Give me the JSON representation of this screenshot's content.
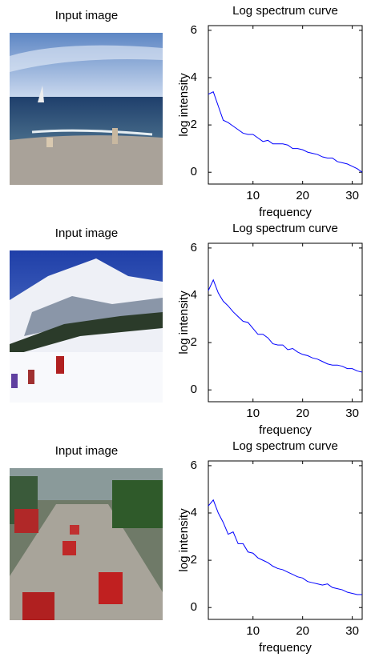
{
  "input_images": [
    {
      "title": "Input image"
    },
    {
      "title": "Input image"
    },
    {
      "title": "Input image"
    }
  ],
  "chart_data": [
    {
      "type": "line",
      "title": "Log spectrum curve",
      "x_label": "frequency",
      "y_label": "log intensity",
      "x": [
        1,
        2,
        3,
        4,
        5,
        6,
        7,
        8,
        9,
        10,
        11,
        12,
        13,
        14,
        15,
        16,
        17,
        18,
        19,
        20,
        21,
        22,
        23,
        24,
        25,
        26,
        27,
        28,
        29,
        30,
        31,
        32
      ],
      "series": [
        {
          "color": "#0000ff",
          "values": [
            3.3,
            3.4,
            2.8,
            2.2,
            2.1,
            1.95,
            1.8,
            1.65,
            1.6,
            1.6,
            1.45,
            1.3,
            1.35,
            1.2,
            1.2,
            1.2,
            1.15,
            1.0,
            1.0,
            0.95,
            0.85,
            0.8,
            0.75,
            0.65,
            0.6,
            0.6,
            0.45,
            0.4,
            0.35,
            0.25,
            0.15,
            0.0
          ]
        }
      ],
      "xlim": [
        1,
        32
      ],
      "ylim": [
        -0.5,
        6.2
      ],
      "xticks": [
        10,
        20,
        30
      ],
      "yticks": [
        0,
        2,
        4,
        6
      ]
    },
    {
      "type": "line",
      "title": "Log spectrum curve",
      "x_label": "frequency",
      "y_label": "log intensity",
      "x": [
        1,
        2,
        3,
        4,
        5,
        6,
        7,
        8,
        9,
        10,
        11,
        12,
        13,
        14,
        15,
        16,
        17,
        18,
        19,
        20,
        21,
        22,
        23,
        24,
        25,
        26,
        27,
        28,
        29,
        30,
        31,
        32
      ],
      "series": [
        {
          "color": "#0000ff",
          "values": [
            4.2,
            4.65,
            4.1,
            3.75,
            3.55,
            3.3,
            3.1,
            2.9,
            2.85,
            2.6,
            2.35,
            2.35,
            2.2,
            1.95,
            1.9,
            1.9,
            1.7,
            1.75,
            1.6,
            1.5,
            1.45,
            1.35,
            1.3,
            1.2,
            1.1,
            1.05,
            1.05,
            1.0,
            0.9,
            0.9,
            0.8,
            0.75
          ]
        }
      ],
      "xlim": [
        1,
        32
      ],
      "ylim": [
        -0.5,
        6.2
      ],
      "xticks": [
        10,
        20,
        30
      ],
      "yticks": [
        0,
        2,
        4,
        6
      ]
    },
    {
      "type": "line",
      "title": "Log spectrum curve",
      "x_label": "frequency",
      "y_label": "log intensity",
      "x": [
        1,
        2,
        3,
        4,
        5,
        6,
        7,
        8,
        9,
        10,
        11,
        12,
        13,
        14,
        15,
        16,
        17,
        18,
        19,
        20,
        21,
        22,
        23,
        24,
        25,
        26,
        27,
        28,
        29,
        30,
        31,
        32
      ],
      "series": [
        {
          "color": "#0000ff",
          "values": [
            4.3,
            4.55,
            4.0,
            3.6,
            3.1,
            3.2,
            2.7,
            2.7,
            2.35,
            2.3,
            2.1,
            2.0,
            1.9,
            1.75,
            1.65,
            1.6,
            1.5,
            1.4,
            1.3,
            1.25,
            1.1,
            1.05,
            1.0,
            0.95,
            1.0,
            0.85,
            0.8,
            0.75,
            0.65,
            0.6,
            0.55,
            0.55
          ]
        }
      ],
      "xlim": [
        1,
        32
      ],
      "ylim": [
        -0.5,
        6.2
      ],
      "xticks": [
        10,
        20,
        30
      ],
      "yticks": [
        0,
        2,
        4,
        6
      ]
    }
  ]
}
